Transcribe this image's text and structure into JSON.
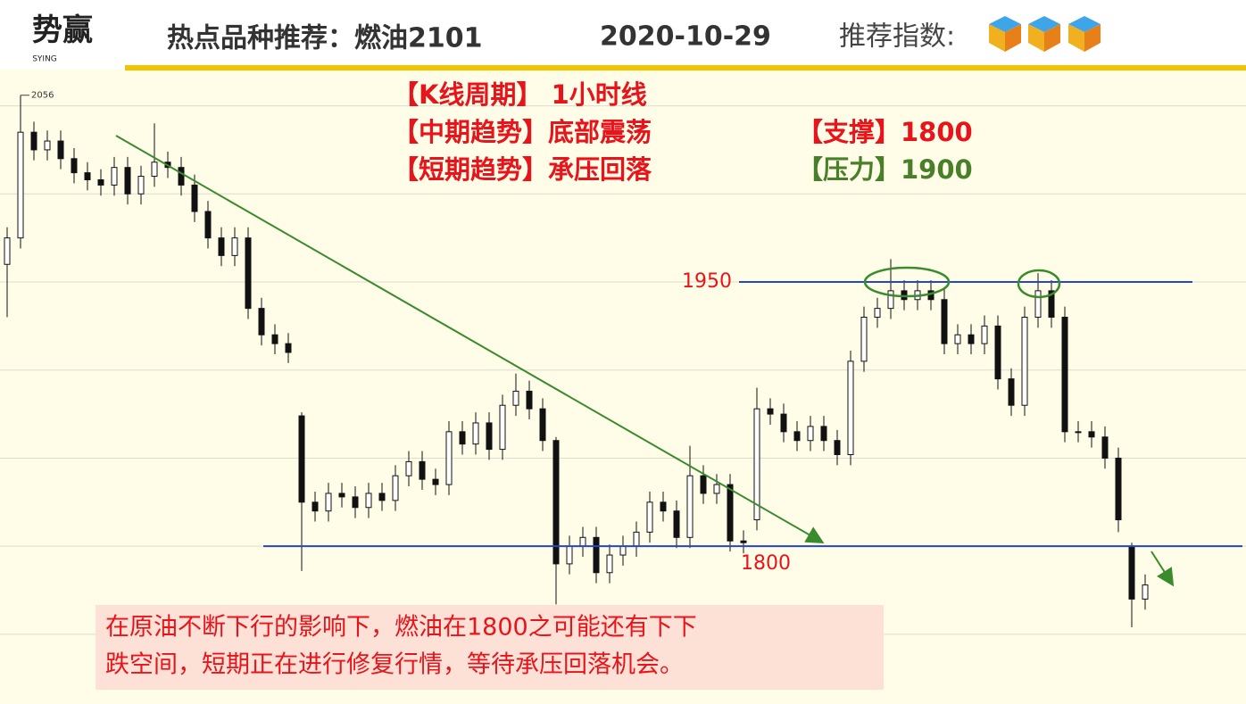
{
  "logo": {
    "text": "势赢",
    "sub": "SYING"
  },
  "header": {
    "title": "热点品种推荐：燃油2101",
    "date": "2020-10-29",
    "rating_label": "推荐指数:"
  },
  "notes": {
    "period": "【K线周期】 1小时线",
    "mid_trend": "【中期趋势】底部震荡",
    "short_trend": "【短期趋势】承压回落",
    "support": "【支撑】1800",
    "pressure": "【压力】1900"
  },
  "comment": [
    "在原油不断下行的影响下，燃油在1800之可能还有下下",
    "跌空间，短期正在进行修复行情，等待承压回落机会。"
  ],
  "chart_data": {
    "type": "candlestick",
    "open": [
      1960,
      1975,
      2035,
      2025,
      2030,
      2020,
      2012,
      2008,
      2005,
      2015,
      2000,
      2010,
      2018,
      2015,
      2005,
      1990,
      1975,
      1965,
      1975,
      1935,
      1920,
      1915,
      1874,
      1825,
      1820,
      1830,
      1828,
      1822,
      1830,
      1826,
      1840,
      1848,
      1838,
      1835,
      1865,
      1858,
      1870,
      1855,
      1880,
      1888,
      1878,
      1860,
      1790,
      1800,
      1805,
      1785,
      1795,
      1800,
      1808,
      1825,
      1820,
      1805,
      1840,
      1830,
      1835,
      1803,
      1815,
      1878,
      1875,
      1865,
      1860,
      1868,
      1860,
      1852,
      1905,
      1930,
      1935,
      1945,
      1940,
      1945,
      1940,
      1915,
      1920,
      1915,
      1925,
      1895,
      1880,
      1930,
      1945,
      1930,
      1865,
      1865,
      1862,
      1850,
      1800,
      1770
    ],
    "high": [
      1981,
      2056,
      2041,
      2036,
      2036,
      2026,
      2018,
      2014,
      2021,
      2021,
      2016,
      2040,
      2024,
      2021,
      2011,
      1996,
      1981,
      1981,
      1981,
      1941,
      1926,
      1921,
      1876,
      1831,
      1836,
      1836,
      1834,
      1836,
      1836,
      1846,
      1854,
      1854,
      1844,
      1871,
      1871,
      1876,
      1876,
      1886,
      1898,
      1894,
      1884,
      1862,
      1806,
      1811,
      1811,
      1801,
      1806,
      1814,
      1831,
      1831,
      1826,
      1857,
      1846,
      1841,
      1841,
      1809,
      1890,
      1884,
      1881,
      1871,
      1874,
      1874,
      1866,
      1911,
      1936,
      1941,
      1963,
      1951,
      1951,
      1951,
      1946,
      1926,
      1926,
      1931,
      1931,
      1901,
      1936,
      1955,
      1951,
      1936,
      1871,
      1871,
      1868,
      1856,
      1802,
      1784
    ],
    "low": [
      1930,
      1969,
      2019,
      2019,
      2014,
      2006,
      2002,
      1999,
      1999,
      1994,
      1994,
      2004,
      2009,
      1999,
      1984,
      1969,
      1959,
      1959,
      1929,
      1914,
      1909,
      1904,
      1786,
      1814,
      1814,
      1822,
      1816,
      1816,
      1820,
      1820,
      1834,
      1832,
      1829,
      1829,
      1852,
      1852,
      1849,
      1849,
      1874,
      1872,
      1854,
      1767,
      1784,
      1794,
      1779,
      1779,
      1789,
      1794,
      1802,
      1814,
      1799,
      1799,
      1824,
      1824,
      1797,
      1796,
      1809,
      1869,
      1859,
      1854,
      1854,
      1854,
      1846,
      1846,
      1899,
      1924,
      1929,
      1934,
      1934,
      1934,
      1909,
      1909,
      1909,
      1909,
      1889,
      1874,
      1874,
      1924,
      1924,
      1859,
      1859,
      1856,
      1844,
      1808,
      1754,
      1764
    ],
    "close": [
      1975,
      2035,
      2025,
      2030,
      2020,
      2012,
      2008,
      2005,
      2015,
      2000,
      2010,
      2018,
      2015,
      2005,
      1990,
      1975,
      1965,
      1975,
      1935,
      1920,
      1915,
      1910,
      1825,
      1820,
      1830,
      1828,
      1822,
      1830,
      1826,
      1840,
      1848,
      1838,
      1835,
      1865,
      1858,
      1870,
      1855,
      1880,
      1888,
      1878,
      1860,
      1790,
      1800,
      1805,
      1785,
      1795,
      1800,
      1808,
      1825,
      1820,
      1805,
      1840,
      1830,
      1835,
      1803,
      1802,
      1878,
      1875,
      1865,
      1860,
      1868,
      1860,
      1852,
      1905,
      1930,
      1935,
      1945,
      1940,
      1945,
      1940,
      1915,
      1920,
      1915,
      1925,
      1895,
      1880,
      1930,
      1945,
      1930,
      1865,
      1865,
      1862,
      1850,
      1815,
      1770,
      1778
    ],
    "high_marker": 2056,
    "levels": [
      {
        "value": 1950,
        "color": "#2446c8"
      },
      {
        "value": 1800,
        "color": "#2446c8"
      }
    ],
    "ylim": [
      1715,
      2067
    ],
    "yticks": [
      1750,
      1800,
      1850,
      1900,
      1950,
      2000,
      2050
    ],
    "grid": true,
    "up_color": "#ffffff",
    "down_color": "#111111"
  }
}
